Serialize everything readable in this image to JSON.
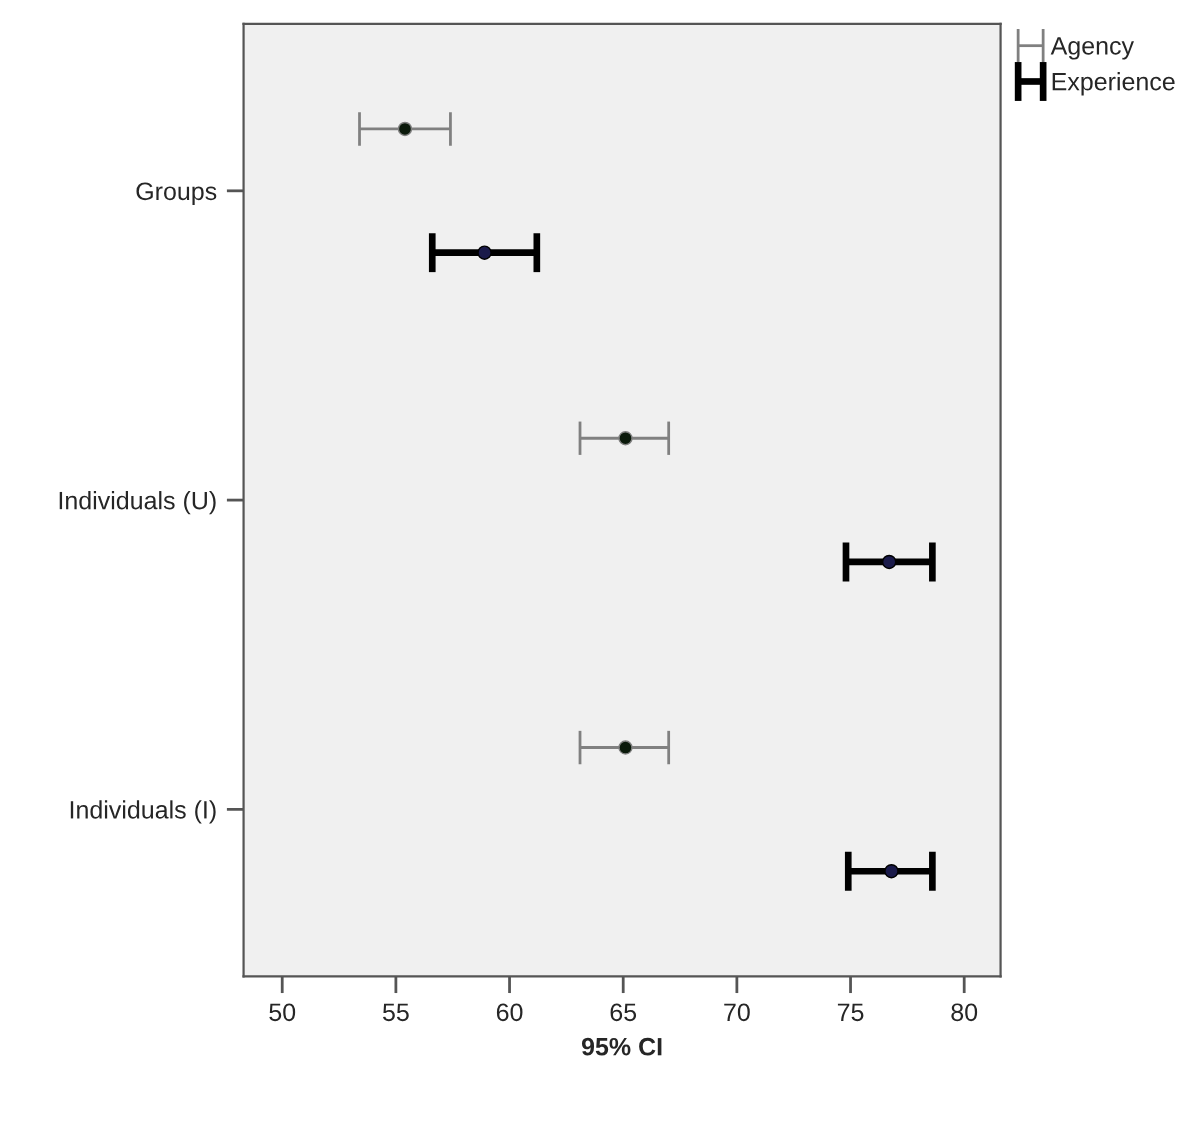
{
  "chart_data": {
    "type": "scatter",
    "orientation": "horizontal",
    "xlabel": "95% CI",
    "categories": [
      "Groups",
      "Individuals (U)",
      "Individuals (I)"
    ],
    "series": [
      {
        "name": "Agency",
        "color": "#808080",
        "values": [
          55.4,
          65.1,
          65.1
        ],
        "errors": [
          [
            53.4,
            57.4
          ],
          [
            63.1,
            67.0
          ],
          [
            63.1,
            67.0
          ]
        ]
      },
      {
        "name": "Experience",
        "color": "#000000",
        "values": [
          58.9,
          76.7,
          76.8
        ],
        "errors": [
          [
            56.6,
            61.2
          ],
          [
            74.8,
            78.6
          ],
          [
            74.9,
            78.6
          ]
        ]
      }
    ],
    "xlim": [
      48.3,
      81.6
    ],
    "xticks": [
      50,
      55,
      60,
      65,
      70,
      75,
      80
    ],
    "grid": false,
    "legend": "top right",
    "marker": "circle"
  }
}
